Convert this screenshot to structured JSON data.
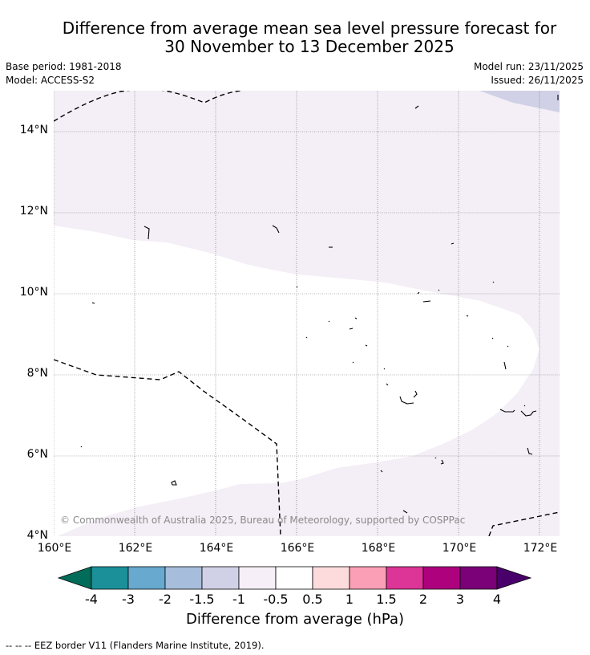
{
  "title": {
    "line1": "Difference from average mean sea level pressure forecast for",
    "line2": "30 November to 13 December 2025"
  },
  "meta": {
    "base_period": "Base period: 1981-2018",
    "model": "Model: ACCESS-S2",
    "model_run": "Model run: 23/11/2025",
    "issued": "Issued: 26/11/2025"
  },
  "axes": {
    "lat_labels": [
      "14°N",
      "12°N",
      "10°N",
      "8°N",
      "6°N",
      "4°N"
    ],
    "lon_labels": [
      "160°E",
      "162°E",
      "164°E",
      "166°E",
      "168°E",
      "170°E",
      "172°E"
    ]
  },
  "map": {
    "copyright": "© Commonwealth of Australia 2025, Bureau of Meteorology, supported by COSPPac",
    "region_colors": {
      "neutral": "#ffffff",
      "minus_0_5_to_minus_1": "#f4eef6",
      "minus_1_to_minus_1_5": "#d0d1e6"
    }
  },
  "colorbar": {
    "title": "Difference from average (hPa)",
    "labels": [
      "-4",
      "-3",
      "-2",
      "-1.5",
      "-1",
      "-0.5",
      "0.5",
      "1",
      "1.5",
      "2",
      "3",
      "4"
    ],
    "colors": [
      "#016c59",
      "#1c9099",
      "#67a9cf",
      "#a6bddb",
      "#d0d1e6",
      "#f6eff7",
      "#ffffff",
      "#fddbdc",
      "#fa9fb5",
      "#dd3497",
      "#ae017e",
      "#7a0177",
      "#49006a"
    ]
  },
  "legend": {
    "eez": "--  --  -- EEZ border V11 (Flanders Marine Institute, 2019)."
  }
}
